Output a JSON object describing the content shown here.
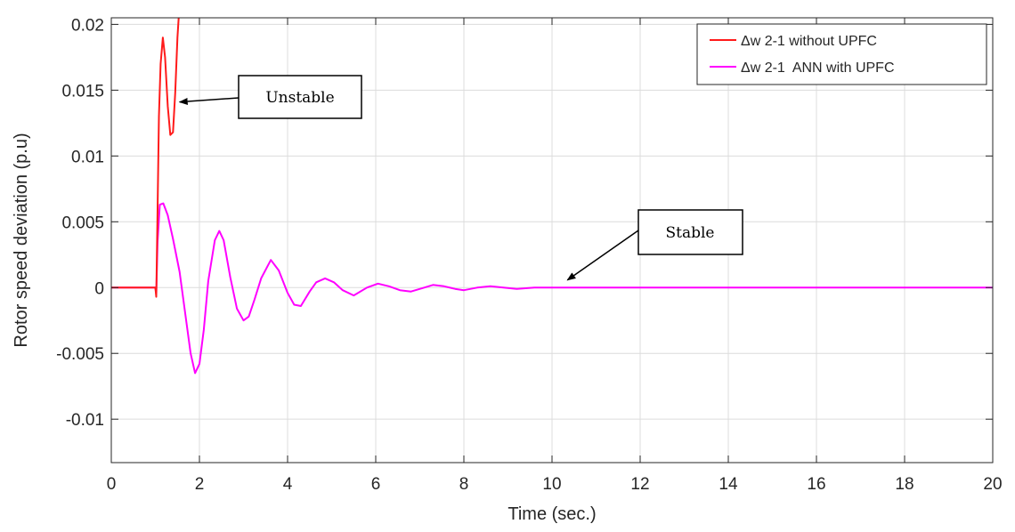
{
  "chart_data": {
    "type": "line",
    "xlabel": "Time (sec.)",
    "ylabel": "Rotor speed deviation (p.u)",
    "xlim": [
      0,
      20
    ],
    "ylim": [
      -0.0133,
      0.0205
    ],
    "xticks": [
      0,
      2,
      4,
      6,
      8,
      10,
      12,
      14,
      16,
      18,
      20
    ],
    "xtick_labels": [
      "0",
      "2",
      "4",
      "6",
      "8",
      "10",
      "12",
      "14",
      "16",
      "18",
      "20"
    ],
    "yticks": [
      0.02,
      0.015,
      0.01,
      0.005,
      0,
      -0.005,
      -0.01
    ],
    "ytick_labels": [
      "0.02",
      "0.015",
      "0.01",
      "0.005",
      "0",
      "-0.005",
      "-0.01"
    ],
    "grid": true,
    "legend_position": "top-right",
    "series": [
      {
        "name": "Δw 2-1 without UPFC",
        "color": "#ff1a1a",
        "x": [
          0,
          1.0,
          1.02,
          1.05,
          1.08,
          1.12,
          1.17,
          1.22,
          1.28,
          1.34,
          1.4,
          1.45,
          1.5,
          1.53
        ],
        "y": [
          0,
          0,
          -0.0007,
          0.006,
          0.013,
          0.017,
          0.019,
          0.0175,
          0.0138,
          0.0116,
          0.0118,
          0.0148,
          0.019,
          0.0205
        ]
      },
      {
        "name": "Δw 2-1  ANN with UPFC",
        "color": "#ff00ff",
        "x": [
          0,
          1.0,
          1.02,
          1.05,
          1.1,
          1.18,
          1.28,
          1.4,
          1.55,
          1.7,
          1.8,
          1.9,
          2.0,
          2.1,
          2.2,
          2.35,
          2.45,
          2.55,
          2.7,
          2.85,
          3.0,
          3.12,
          3.25,
          3.4,
          3.62,
          3.8,
          4.0,
          4.15,
          4.3,
          4.5,
          4.65,
          4.85,
          5.05,
          5.25,
          5.5,
          5.8,
          6.05,
          6.3,
          6.55,
          6.8,
          7.1,
          7.3,
          7.55,
          7.8,
          8.0,
          8.3,
          8.6,
          8.9,
          9.2,
          9.6,
          10.0,
          10.4,
          11.0,
          12.0,
          14.0,
          16.0,
          18.0,
          20.0
        ],
        "y": [
          0,
          0,
          -0.0005,
          0.0035,
          0.0063,
          0.0064,
          0.0055,
          0.0037,
          0.0012,
          -0.0025,
          -0.005,
          -0.0065,
          -0.0058,
          -0.0032,
          0.0005,
          0.0036,
          0.0043,
          0.0036,
          0.0008,
          -0.0016,
          -0.0025,
          -0.0022,
          -0.0009,
          0.0007,
          0.0021,
          0.0013,
          -0.0004,
          -0.0013,
          -0.0014,
          -0.0003,
          0.0004,
          0.0007,
          0.0004,
          -0.0002,
          -0.0006,
          0,
          0.0003,
          0.0001,
          -0.0002,
          -0.0003,
          0,
          0.0002,
          0.0001,
          -0.0001,
          -0.0002,
          0,
          0.0001,
          0,
          -0.0001,
          0,
          0,
          0,
          0,
          0,
          0,
          0,
          0,
          0
        ]
      }
    ],
    "annotations": [
      {
        "text": "Unstable",
        "point_to": [
          1.55,
          0.0141
        ]
      },
      {
        "text": "Stable",
        "point_to": [
          10.35,
          0.0001
        ]
      }
    ]
  }
}
